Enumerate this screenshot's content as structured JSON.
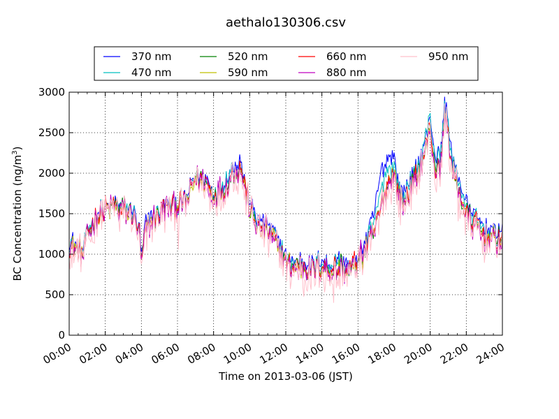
{
  "chart_data": {
    "type": "line",
    "title": "aethalo130306.csv",
    "xlabel": "Time on 2013-03-06 (JST)",
    "ylabel_main": "BC Concentration (ng/m",
    "ylabel_sup": "3",
    "ylabel_close": ")",
    "xlim": [
      "00:00",
      "24:00"
    ],
    "ylim": [
      0,
      3000
    ],
    "x_ticks": [
      "00:00",
      "02:00",
      "04:00",
      "06:00",
      "08:00",
      "10:00",
      "12:00",
      "14:00",
      "16:00",
      "18:00",
      "20:00",
      "22:00",
      "24:00"
    ],
    "y_ticks": [
      "0",
      "500",
      "1000",
      "1500",
      "2000",
      "2500",
      "3000"
    ],
    "grid": true,
    "legend_position": "top",
    "series": [
      {
        "name": "370 nm",
        "color": "#0000ff"
      },
      {
        "name": "470 nm",
        "color": "#00bfbf"
      },
      {
        "name": "520 nm",
        "color": "#008000"
      },
      {
        "name": "590 nm",
        "color": "#bfbf00"
      },
      {
        "name": "660 nm",
        "color": "#ff0000"
      },
      {
        "name": "880 nm",
        "color": "#bf00bf"
      },
      {
        "name": "950 nm",
        "color": "#ffc0cb"
      }
    ],
    "base_profile": {
      "x_hours": [
        0,
        0.25,
        0.5,
        0.75,
        1.0,
        1.5,
        2.0,
        2.5,
        3.0,
        3.5,
        3.9,
        4.0,
        4.2,
        4.5,
        5.0,
        5.5,
        6.0,
        6.5,
        7.0,
        7.5,
        8.0,
        8.5,
        9.0,
        9.5,
        10.0,
        10.5,
        11.0,
        11.5,
        12.0,
        12.5,
        13.0,
        13.5,
        14.0,
        14.5,
        15.0,
        15.5,
        16.0,
        16.5,
        17.0,
        17.5,
        17.8,
        18.0,
        18.2,
        18.5,
        19.0,
        19.5,
        20.0,
        20.3,
        20.6,
        20.8,
        21.0,
        21.2,
        21.5,
        22.0,
        22.5,
        23.0,
        23.5,
        24.0
      ],
      "y_values": [
        1100,
        1100,
        1050,
        1000,
        1200,
        1450,
        1550,
        1600,
        1550,
        1500,
        1250,
        850,
        1300,
        1400,
        1500,
        1600,
        1600,
        1650,
        1950,
        1900,
        1700,
        1800,
        2000,
        2050,
        1550,
        1350,
        1300,
        1150,
        900,
        850,
        850,
        800,
        850,
        800,
        850,
        800,
        900,
        1100,
        1350,
        1800,
        1950,
        2000,
        1750,
        1650,
        1850,
        2100,
        2550,
        2050,
        2100,
        2750,
        2500,
        2050,
        1850,
        1500,
        1350,
        1250,
        1200,
        1200
      ]
    },
    "series_offsets": [
      {
        "name": "370 nm",
        "segments": [
          [
            0,
            40
          ],
          [
            16.5,
            80
          ],
          [
            17.3,
            400
          ],
          [
            18.4,
            120
          ],
          [
            20,
            130
          ],
          [
            21.5,
            150
          ],
          [
            24,
            60
          ]
        ]
      },
      {
        "name": "470 nm",
        "segments": [
          [
            0,
            20
          ],
          [
            16.5,
            40
          ],
          [
            17.3,
            200
          ],
          [
            18.4,
            80
          ],
          [
            20,
            90
          ],
          [
            21.5,
            100
          ],
          [
            24,
            40
          ]
        ]
      },
      {
        "name": "520 nm",
        "segments": [
          [
            0,
            0
          ],
          [
            24,
            0
          ]
        ]
      },
      {
        "name": "590 nm",
        "segments": [
          [
            0,
            -10
          ],
          [
            24,
            -10
          ]
        ]
      },
      {
        "name": "660 nm",
        "segments": [
          [
            0,
            0
          ],
          [
            24,
            0
          ]
        ]
      },
      {
        "name": "880 nm",
        "segments": [
          [
            0,
            -20
          ],
          [
            24,
            -30
          ]
        ]
      },
      {
        "name": "950 nm",
        "segments": [
          [
            0,
            -40
          ],
          [
            24,
            -70
          ]
        ]
      }
    ],
    "noise_amplitude": [
      120,
      130,
      140,
      140,
      150,
      170,
      230
    ]
  }
}
